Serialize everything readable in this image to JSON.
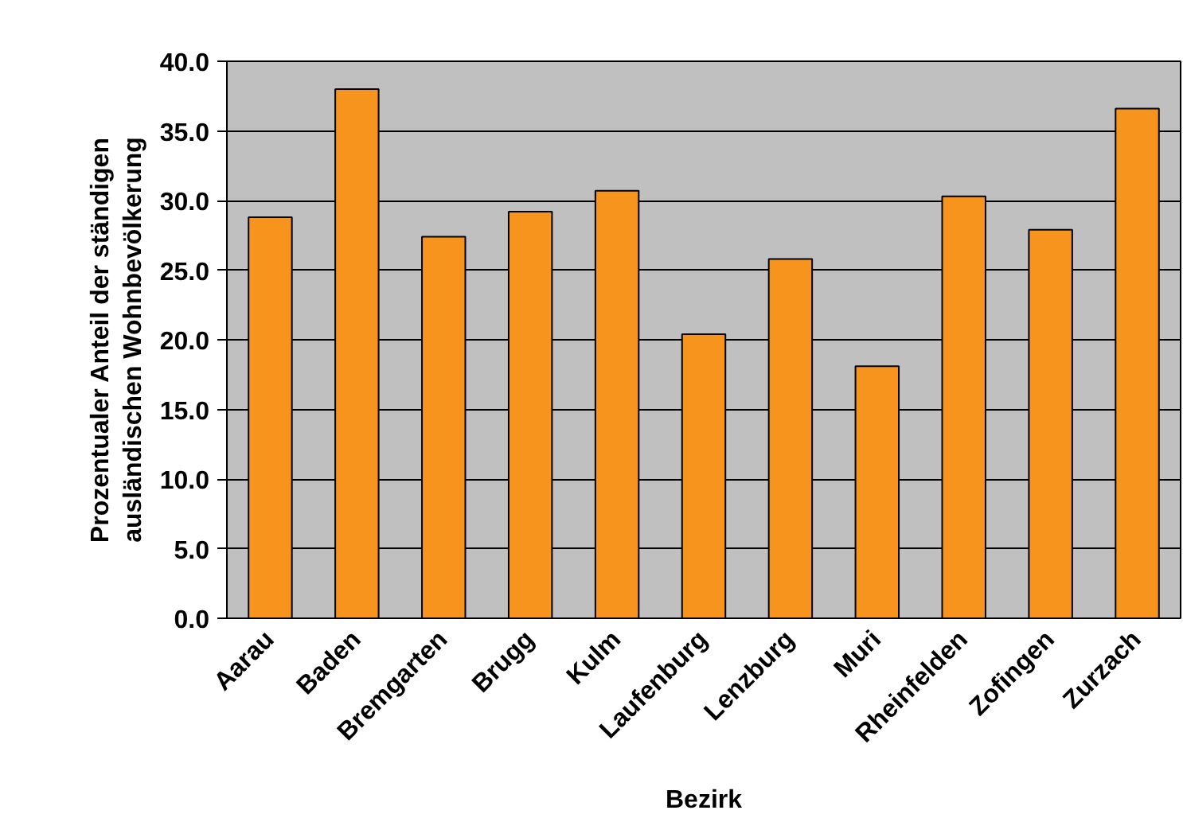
{
  "chart_data": {
    "type": "bar",
    "xlabel": "Bezirk",
    "ylabel": "Prozentualer Anteil der ständigen\nausländischen Wohnbevölkerung",
    "categories": [
      "Aarau",
      "Baden",
      "Bremgarten",
      "Brugg",
      "Kulm",
      "Laufenburg",
      "Lenzburg",
      "Muri",
      "Rheinfelden",
      "Zofingen",
      "Zurzach"
    ],
    "values": [
      28.8,
      38.0,
      27.4,
      29.2,
      30.7,
      20.4,
      25.8,
      18.1,
      30.3,
      27.9,
      36.6
    ],
    "color": "#f7941d",
    "ylim": [
      0,
      40
    ],
    "yticks": [
      {
        "value": 0,
        "label": "0.0"
      },
      {
        "value": 5,
        "label": "5.0"
      },
      {
        "value": 10,
        "label": "10.0"
      },
      {
        "value": 15,
        "label": "15.0"
      },
      {
        "value": 20,
        "label": "20.0"
      },
      {
        "value": 25,
        "label": "25.0"
      },
      {
        "value": 30,
        "label": "30.0"
      },
      {
        "value": 35,
        "label": "35.0"
      },
      {
        "value": 40,
        "label": "40.0"
      }
    ],
    "grid": "y"
  }
}
